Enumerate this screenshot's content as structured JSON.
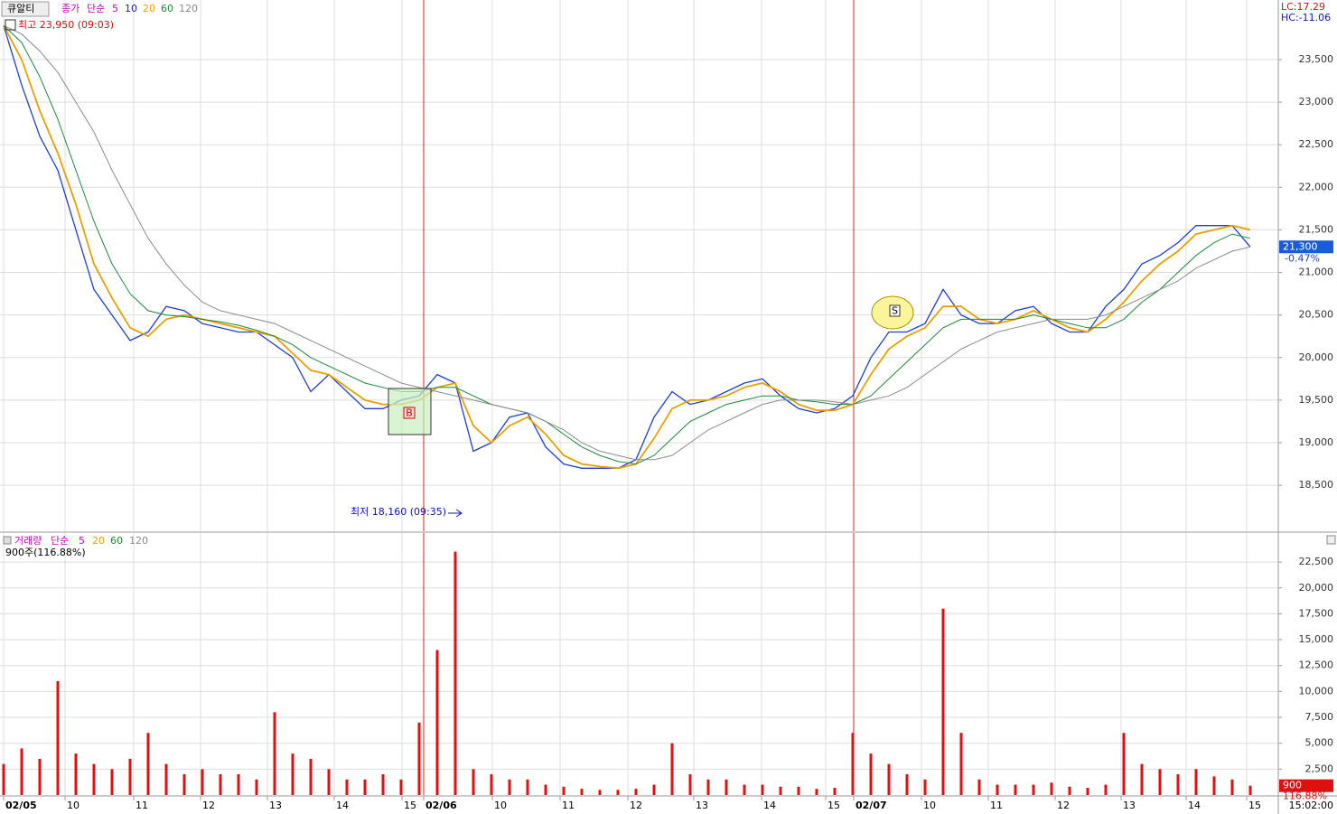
{
  "chart_data": [
    {
      "type": "line",
      "x": [
        0,
        1,
        2,
        3,
        4,
        5,
        6,
        7,
        8,
        9,
        10,
        11,
        12,
        13,
        14,
        15,
        16,
        17,
        18,
        19,
        20,
        21,
        22,
        23,
        24,
        25,
        26,
        27,
        28,
        29,
        30,
        31,
        32,
        33,
        34,
        35,
        36,
        37,
        38,
        39,
        40,
        41,
        42,
        43,
        44,
        45,
        46,
        47,
        48,
        49,
        50,
        51,
        52,
        53,
        54,
        55,
        56,
        57,
        58,
        59,
        60,
        61,
        62,
        63,
        64,
        65,
        66,
        67,
        68,
        69
      ],
      "xlim": [
        -0.2,
        70.55
      ],
      "ylim": [
        17960,
        24200
      ],
      "yticks": [
        {
          "value": 18500,
          "label": "18,500"
        },
        {
          "value": 19000,
          "label": "19,000"
        },
        {
          "value": 19500,
          "label": "19,500"
        },
        {
          "value": 20000,
          "label": "20,000"
        },
        {
          "value": 20500,
          "label": "20,500"
        },
        {
          "value": 21000,
          "label": "21,000"
        },
        {
          "value": 21500,
          "label": "21,500"
        },
        {
          "value": 22000,
          "label": "22,000"
        },
        {
          "value": 22500,
          "label": "22,500"
        },
        {
          "value": 23000,
          "label": "23,000"
        },
        {
          "value": 23500,
          "label": "23,500"
        }
      ],
      "grid": true,
      "symbol": "큐알티",
      "method": "단순",
      "unplotted_periods": [
        {
          "name": "5",
          "color": "#cc00cc"
        },
        {
          "name": "10",
          "color": "#2020c0"
        }
      ],
      "series": [
        {
          "name": "종가",
          "color": "#1c3fd6",
          "values": [
            23900,
            23200,
            22600,
            22200,
            21500,
            20800,
            20500,
            20200,
            20300,
            20600,
            20550,
            20400,
            20350,
            20300,
            20300,
            20150,
            20000,
            19600,
            19800,
            19600,
            19400,
            19400,
            19500,
            19550,
            19800,
            19700,
            18900,
            19000,
            19300,
            19350,
            18950,
            18750,
            18700,
            18700,
            18700,
            18800,
            19300,
            19600,
            19450,
            19500,
            19600,
            19700,
            19750,
            19550,
            19400,
            19350,
            19400,
            19550,
            20000,
            20300,
            20300,
            20400,
            20800,
            20500,
            20400,
            20400,
            20550,
            20600,
            20400,
            20300,
            20300,
            20600,
            20800,
            21100,
            21200,
            21350,
            21550,
            21550,
            21550,
            21300
          ]
        },
        {
          "name": "20",
          "color": "#e8a000",
          "values": [
            23900,
            23500,
            22900,
            22400,
            21800,
            21100,
            20700,
            20350,
            20250,
            20450,
            20500,
            20450,
            20400,
            20350,
            20300,
            20250,
            20050,
            19850,
            19800,
            19650,
            19500,
            19450,
            19450,
            19500,
            19650,
            19700,
            19200,
            19000,
            19200,
            19300,
            19100,
            18850,
            18750,
            18720,
            18700,
            18750,
            19050,
            19400,
            19500,
            19500,
            19550,
            19650,
            19700,
            19600,
            19450,
            19380,
            19380,
            19450,
            19800,
            20100,
            20250,
            20350,
            20600,
            20600,
            20450,
            20400,
            20450,
            20550,
            20450,
            20350,
            20300,
            20450,
            20650,
            20900,
            21100,
            21250,
            21450,
            21500,
            21550,
            21500
          ]
        },
        {
          "name": "60",
          "color": "#1a8a3a",
          "values": [
            23900,
            23700,
            23300,
            22800,
            22200,
            21600,
            21100,
            20750,
            20550,
            20500,
            20480,
            20450,
            20420,
            20380,
            20320,
            20250,
            20150,
            20000,
            19900,
            19800,
            19700,
            19650,
            19600,
            19600,
            19650,
            19650,
            19550,
            19450,
            19400,
            19350,
            19250,
            19100,
            18950,
            18850,
            18780,
            18750,
            18850,
            19050,
            19250,
            19350,
            19450,
            19500,
            19550,
            19550,
            19500,
            19480,
            19450,
            19450,
            19550,
            19750,
            19950,
            20150,
            20350,
            20450,
            20450,
            20450,
            20450,
            20500,
            20450,
            20400,
            20350,
            20350,
            20450,
            20650,
            20800,
            21000,
            21200,
            21350,
            21450,
            21400
          ]
        },
        {
          "name": "120",
          "color": "#8a8a8a",
          "values": [
            23900,
            23800,
            23600,
            23350,
            23000,
            22650,
            22200,
            21800,
            21400,
            21100,
            20850,
            20650,
            20550,
            20500,
            20450,
            20400,
            20300,
            20200,
            20100,
            20000,
            19900,
            19800,
            19700,
            19650,
            19600,
            19550,
            19500,
            19450,
            19400,
            19350,
            19250,
            19150,
            19000,
            18900,
            18850,
            18800,
            18800,
            18850,
            19000,
            19150,
            19250,
            19350,
            19450,
            19500,
            19500,
            19500,
            19480,
            19450,
            19500,
            19550,
            19650,
            19800,
            19950,
            20100,
            20200,
            20300,
            20350,
            20400,
            20450,
            20450,
            20450,
            20500,
            20600,
            20700,
            20800,
            20900,
            21050,
            21150,
            21250,
            21300
          ]
        }
      ],
      "annotations": {
        "high": "최고 23,950 (09:03)",
        "low": "최저 18,160 (09:35)",
        "buy": "B",
        "sell": "S"
      },
      "last_price": {
        "value": 21300,
        "label": "21,300",
        "change": "-0.47%"
      },
      "status": {
        "lc": "LC:17.29",
        "hc": "HC:-11.06"
      }
    },
    {
      "type": "bar",
      "x": [
        0,
        1,
        2,
        3,
        4,
        5,
        6,
        7,
        8,
        9,
        10,
        11,
        12,
        13,
        14,
        15,
        16,
        17,
        18,
        19,
        20,
        21,
        22,
        23,
        24,
        25,
        26,
        27,
        28,
        29,
        30,
        31,
        32,
        33,
        34,
        35,
        36,
        37,
        38,
        39,
        40,
        41,
        42,
        43,
        44,
        45,
        46,
        47,
        48,
        49,
        50,
        51,
        52,
        53,
        54,
        55,
        56,
        57,
        58,
        59,
        60,
        61,
        62,
        63,
        64,
        65,
        66,
        67,
        68,
        69
      ],
      "xlim": [
        -0.2,
        70.55
      ],
      "ylim": [
        0,
        25300
      ],
      "yticks": [
        {
          "value": 2500,
          "label": "2,500"
        },
        {
          "value": 5000,
          "label": "5,000"
        },
        {
          "value": 7500,
          "label": "7,500"
        },
        {
          "value": 10000,
          "label": "10,000"
        },
        {
          "value": 12500,
          "label": "12,500"
        },
        {
          "value": 15000,
          "label": "15,000"
        },
        {
          "value": 17500,
          "label": "17,500"
        },
        {
          "value": 20000,
          "label": "20,000"
        },
        {
          "value": 22500,
          "label": "22,500"
        }
      ],
      "xticks": [
        {
          "value": 0,
          "label": "02/05"
        },
        {
          "value": 3.4,
          "label": "10"
        },
        {
          "value": 7.2,
          "label": "11"
        },
        {
          "value": 10.9,
          "label": "12"
        },
        {
          "value": 14.6,
          "label": "13"
        },
        {
          "value": 18.3,
          "label": "14"
        },
        {
          "value": 22.05,
          "label": "15"
        },
        {
          "value": 23.25,
          "label": "02/06"
        },
        {
          "value": 27.05,
          "label": "10"
        },
        {
          "value": 30.8,
          "label": "11"
        },
        {
          "value": 34.55,
          "label": "12"
        },
        {
          "value": 38.2,
          "label": "13"
        },
        {
          "value": 41.95,
          "label": "14"
        },
        {
          "value": 45.5,
          "label": "15"
        },
        {
          "value": 47.05,
          "label": "02/07"
        },
        {
          "value": 50.8,
          "label": "10"
        },
        {
          "value": 54.5,
          "label": "11"
        },
        {
          "value": 58.2,
          "label": "12"
        },
        {
          "value": 61.85,
          "label": "13"
        },
        {
          "value": 65.45,
          "label": "14"
        },
        {
          "value": 68.8,
          "label": "15"
        }
      ],
      "grid": true,
      "method": "단순",
      "unplotted_periods": [
        {
          "name": "5",
          "color": "#cc00cc"
        },
        {
          "name": "20",
          "color": "#e8a000"
        },
        {
          "name": "60",
          "color": "#1a8a3a"
        },
        {
          "name": "120",
          "color": "#8a8a8a"
        }
      ],
      "series": [
        {
          "name": "거래량",
          "color": "#e01010",
          "values": [
            3000,
            4500,
            3500,
            11000,
            4000,
            3000,
            2500,
            3500,
            6000,
            3000,
            2000,
            2500,
            2000,
            2000,
            1500,
            8000,
            4000,
            3500,
            2500,
            1500,
            1500,
            2000,
            1500,
            7000,
            14000,
            23500,
            2500,
            2000,
            1500,
            1500,
            1000,
            800,
            600,
            500,
            500,
            600,
            1000,
            5000,
            2000,
            1500,
            1500,
            1000,
            1000,
            800,
            800,
            600,
            700,
            6000,
            4000,
            3000,
            2000,
            1500,
            18000,
            6000,
            1500,
            1000,
            1000,
            1000,
            1200,
            800,
            700,
            1000,
            6000,
            3000,
            2500,
            2000,
            2500,
            1800,
            1500,
            900
          ]
        }
      ],
      "current": "900주(116.88%)",
      "last_volume": {
        "value": 900,
        "label": "900",
        "ratio": "116.88%"
      },
      "time": "15:02:00"
    }
  ]
}
